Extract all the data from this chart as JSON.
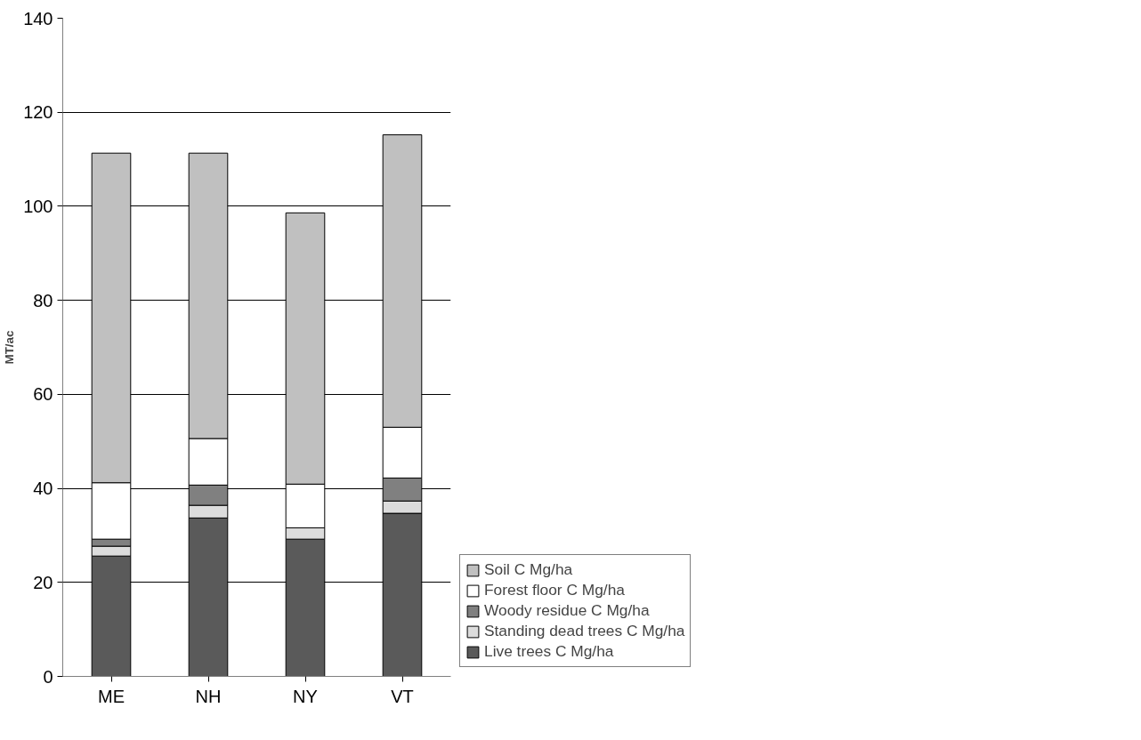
{
  "chart_data": {
    "type": "bar",
    "stacked": true,
    "ylabel": "MT/ac",
    "categories": [
      "ME",
      "NH",
      "NY",
      "VT"
    ],
    "series": [
      {
        "name": "Live trees C Mg/ha",
        "color": "#5a5a5a",
        "values": [
          25.6,
          33.7,
          29.2,
          34.7
        ]
      },
      {
        "name": "Standing dead trees C Mg/ha",
        "color": "#dcdcdc",
        "values": [
          2.1,
          2.7,
          2.4,
          2.6
        ]
      },
      {
        "name": "Woody residue C Mg/ha",
        "color": "#808080",
        "values": [
          1.5,
          4.3,
          0,
          4.9
        ]
      },
      {
        "name": "Forest floor C Mg/ha",
        "color": "#ffffff",
        "values": [
          12.0,
          9.9,
          9.3,
          10.8
        ]
      },
      {
        "name": "Soil C Mg/ha",
        "color": "#c0c0c0",
        "values": [
          70.1,
          60.7,
          57.7,
          62.2
        ]
      }
    ],
    "ylim": [
      0,
      140
    ],
    "yticks": [
      0,
      20,
      40,
      60,
      80,
      100,
      120,
      140
    ],
    "grid": "y",
    "legend": "right"
  }
}
